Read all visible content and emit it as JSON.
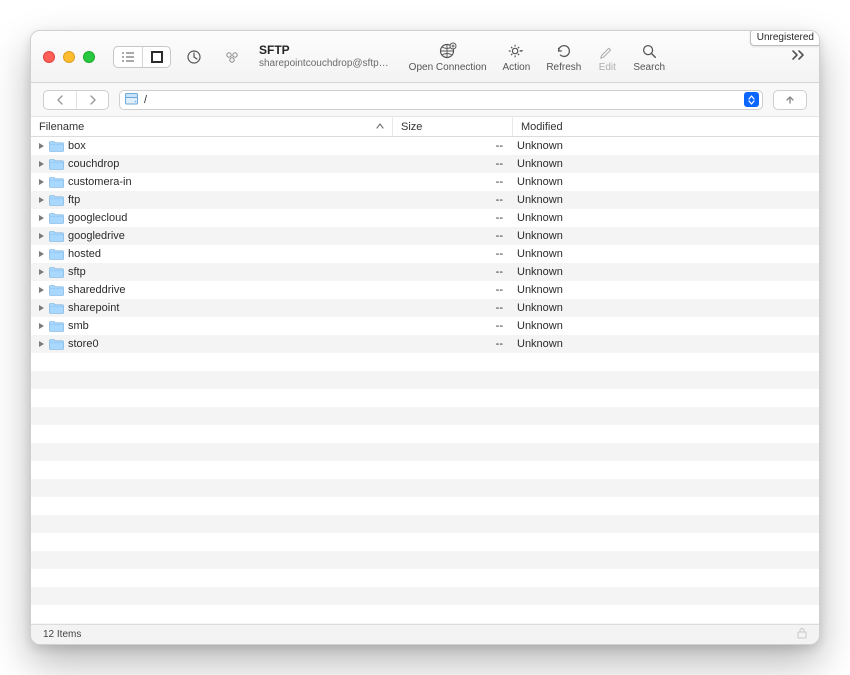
{
  "window": {
    "title": "SFTP",
    "subtitle": "sharepointcouchdrop@sftp…",
    "unregistered_label": "Unregistered"
  },
  "toolbar": {
    "open_connection": "Open Connection",
    "action": "Action",
    "refresh": "Refresh",
    "edit": "Edit",
    "search": "Search"
  },
  "path": {
    "value": "/"
  },
  "columns": {
    "filename": "Filename",
    "size": "Size",
    "modified": "Modified"
  },
  "rows": [
    {
      "name": "box",
      "size": "--",
      "modified": "Unknown"
    },
    {
      "name": "couchdrop",
      "size": "--",
      "modified": "Unknown"
    },
    {
      "name": "customera-in",
      "size": "--",
      "modified": "Unknown"
    },
    {
      "name": "ftp",
      "size": "--",
      "modified": "Unknown"
    },
    {
      "name": "googlecloud",
      "size": "--",
      "modified": "Unknown"
    },
    {
      "name": "googledrive",
      "size": "--",
      "modified": "Unknown"
    },
    {
      "name": "hosted",
      "size": "--",
      "modified": "Unknown"
    },
    {
      "name": "sftp",
      "size": "--",
      "modified": "Unknown"
    },
    {
      "name": "shareddrive",
      "size": "--",
      "modified": "Unknown"
    },
    {
      "name": "sharepoint",
      "size": "--",
      "modified": "Unknown"
    },
    {
      "name": "smb",
      "size": "--",
      "modified": "Unknown"
    },
    {
      "name": "store0",
      "size": "--",
      "modified": "Unknown"
    }
  ],
  "status": {
    "items_label": "12 Items"
  },
  "style": {
    "folder_color_light": "#a9d8ff",
    "folder_color_dark": "#5fb4f4",
    "row_alt_bg": "#f4f4f4",
    "accent": "#0a66ff"
  },
  "empty_row_count": 18
}
